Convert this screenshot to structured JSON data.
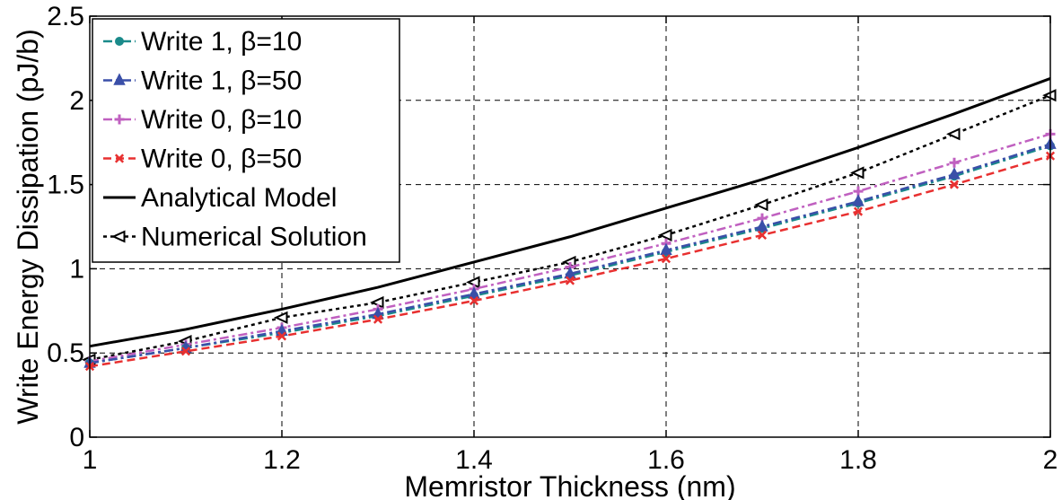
{
  "chart_data": {
    "type": "line",
    "title": "",
    "xlabel": "Memristor Thickness (nm)",
    "ylabel": "Write Energy Dissipation (pJ/b)",
    "xlim": [
      1,
      2
    ],
    "ylim": [
      0,
      2.5
    ],
    "xticks": [
      1,
      1.2,
      1.4,
      1.6,
      1.8,
      2
    ],
    "xtick_labels": [
      "1",
      "1.2",
      "1.4",
      "1.6",
      "1.8",
      "2"
    ],
    "yticks": [
      0,
      0.5,
      1,
      1.5,
      2,
      2.5
    ],
    "ytick_labels": [
      "0",
      "0.5",
      "1",
      "1.5",
      "2",
      "2.5"
    ],
    "grid": true,
    "legend_position": "top-left",
    "x": [
      1.0,
      1.1,
      1.2,
      1.3,
      1.4,
      1.5,
      1.6,
      1.7,
      1.8,
      1.9,
      2.0
    ],
    "series": [
      {
        "name": "Write 1, β=10",
        "color": "#1a8a8a",
        "dash": "dashdot",
        "marker": "dot",
        "values": [
          0.44,
          0.53,
          0.62,
          0.72,
          0.84,
          0.96,
          1.1,
          1.24,
          1.39,
          1.55,
          1.73
        ]
      },
      {
        "name": "Write 1, β=50",
        "color": "#3a4fa8",
        "dash": "dashdot",
        "marker": "triangle-up",
        "values": [
          0.44,
          0.53,
          0.63,
          0.73,
          0.85,
          0.97,
          1.11,
          1.25,
          1.4,
          1.56,
          1.74
        ]
      },
      {
        "name": "Write 0, β=10",
        "color": "#c060c0",
        "dash": "dashdot",
        "marker": "plus",
        "values": [
          0.45,
          0.55,
          0.65,
          0.76,
          0.88,
          1.01,
          1.15,
          1.3,
          1.46,
          1.63,
          1.8
        ]
      },
      {
        "name": "Write 0, β=50",
        "color": "#e83030",
        "dash": "dashed",
        "marker": "x",
        "values": [
          0.42,
          0.51,
          0.6,
          0.7,
          0.81,
          0.93,
          1.06,
          1.2,
          1.34,
          1.5,
          1.67
        ]
      },
      {
        "name": "Analytical Model",
        "color": "#000000",
        "dash": "solid",
        "marker": "none",
        "values": [
          0.54,
          0.64,
          0.76,
          0.89,
          1.04,
          1.19,
          1.36,
          1.53,
          1.72,
          1.92,
          2.13
        ]
      },
      {
        "name": "Numerical Solution",
        "color": "#000000",
        "dash": "dotted",
        "marker": "triangle-left",
        "values": [
          0.46,
          0.57,
          0.71,
          0.8,
          0.92,
          1.04,
          1.2,
          1.38,
          1.57,
          1.8,
          2.03
        ]
      }
    ]
  }
}
